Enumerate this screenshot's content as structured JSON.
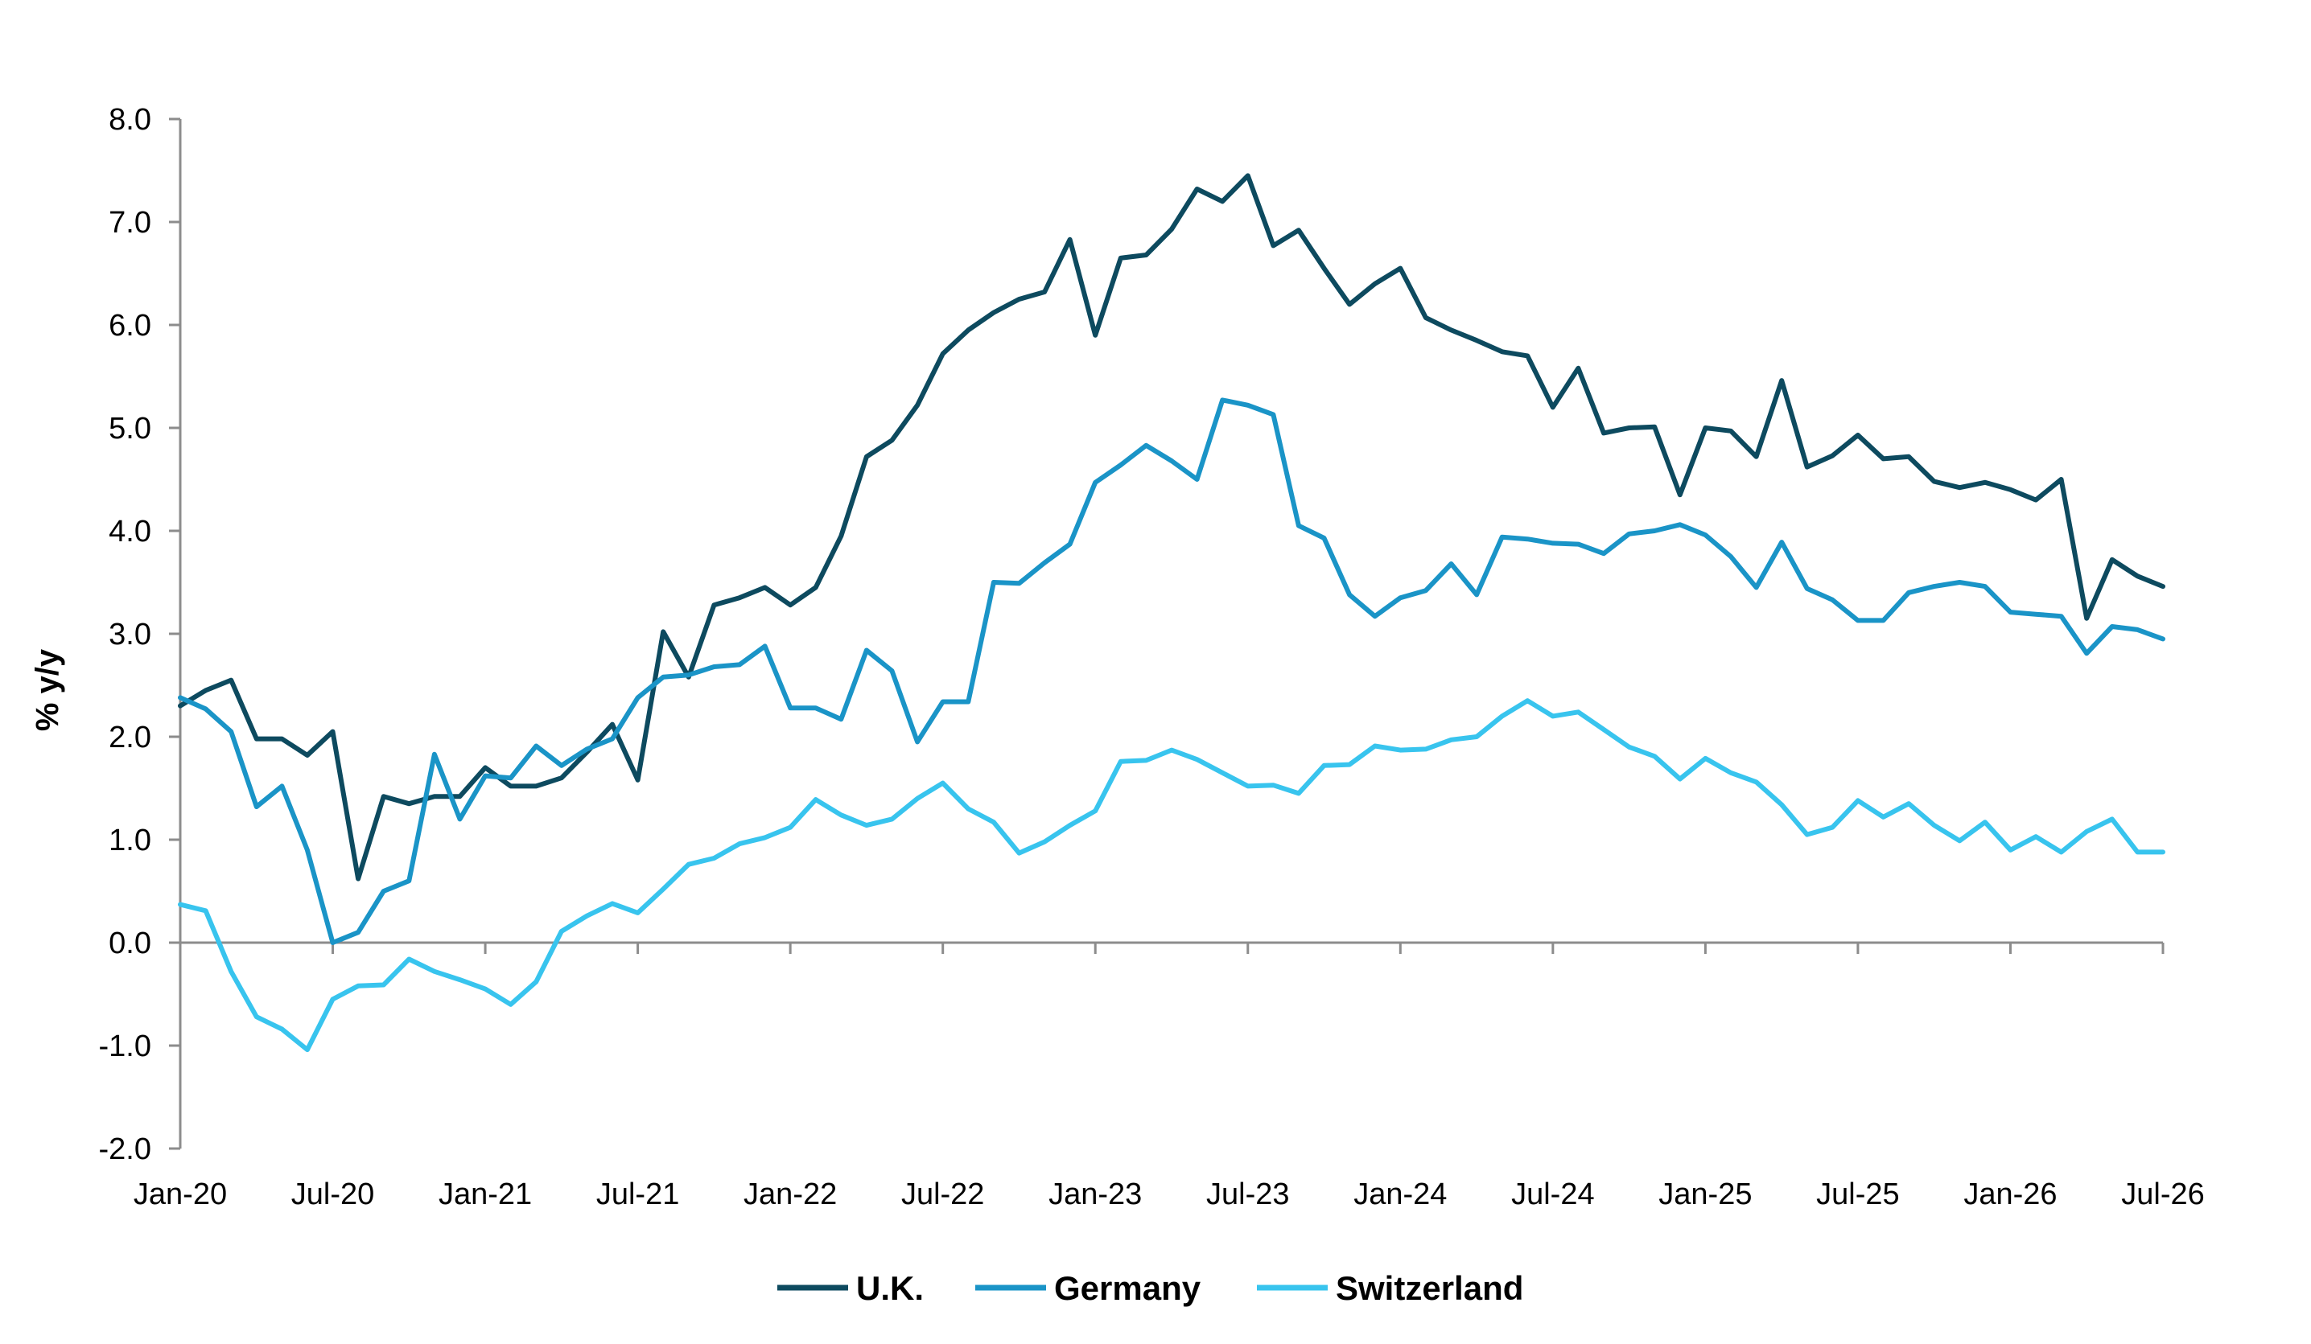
{
  "chart_data": {
    "type": "line",
    "title": "",
    "xlabel": "",
    "ylabel": "% y/y",
    "ylim": [
      -2.0,
      8.0
    ],
    "yticks": [
      "-2.0",
      "-1.0",
      "0.0",
      "1.0",
      "2.0",
      "3.0",
      "4.0",
      "5.0",
      "6.0",
      "7.0",
      "8.0"
    ],
    "xticks": [
      "Jan-20",
      "Jul-20",
      "Jan-21",
      "Jul-21",
      "Jan-22",
      "Jul-22",
      "Jan-23",
      "Jul-23",
      "Jan-24",
      "Jul-24",
      "Jan-25",
      "Jul-25",
      "Jan-26",
      "Jul-26"
    ],
    "x_start": "Jan-20",
    "x_end": "Jul-26",
    "frequency": "monthly",
    "grid": false,
    "legend": "bottom-center",
    "series": [
      {
        "name": "U.K.",
        "color": "#0d4a5f",
        "values": [
          2.3,
          2.45,
          2.55,
          1.98,
          1.98,
          1.82,
          2.05,
          0.62,
          1.42,
          1.35,
          1.42,
          1.42,
          1.7,
          1.52,
          1.52,
          1.6,
          1.85,
          2.12,
          1.58,
          3.02,
          2.58,
          3.28,
          3.35,
          3.45,
          3.28,
          3.45,
          3.95,
          4.72,
          4.88,
          5.22,
          5.72,
          5.95,
          6.12,
          6.25,
          6.32,
          6.83,
          5.9,
          6.65,
          6.68,
          6.93,
          7.32,
          7.2,
          7.45,
          6.77,
          6.92,
          6.55,
          6.2,
          6.4,
          6.55,
          6.07,
          5.95,
          5.85,
          5.74,
          5.7,
          5.2,
          5.58,
          4.95,
          5.0,
          5.01,
          4.35,
          5.0,
          4.97,
          4.72,
          5.46,
          4.62,
          4.73,
          4.93,
          4.7,
          4.72,
          4.48,
          4.42,
          4.47,
          4.4,
          4.3,
          4.5,
          3.15,
          3.72,
          3.56,
          3.46
        ]
      },
      {
        "name": "Germany",
        "color": "#1a94c7",
        "values": [
          2.38,
          2.27,
          2.05,
          1.32,
          1.52,
          0.9,
          0.0,
          0.1,
          0.5,
          0.6,
          1.83,
          1.2,
          1.62,
          1.6,
          1.91,
          1.72,
          1.88,
          1.98,
          2.38,
          2.58,
          2.6,
          2.68,
          2.7,
          2.88,
          2.28,
          2.28,
          2.17,
          2.84,
          2.64,
          1.95,
          2.34,
          2.34,
          3.5,
          3.49,
          3.69,
          3.87,
          4.47,
          4.64,
          4.83,
          4.68,
          4.5,
          5.27,
          5.22,
          5.13,
          4.05,
          3.93,
          3.38,
          3.17,
          3.35,
          3.42,
          3.68,
          3.38,
          3.94,
          3.92,
          3.88,
          3.87,
          3.78,
          3.97,
          4.0,
          4.06,
          3.96,
          3.75,
          3.45,
          3.89,
          3.44,
          3.33,
          3.13,
          3.13,
          3.4,
          3.46,
          3.5,
          3.46,
          3.21,
          3.19,
          3.17,
          2.81,
          3.07,
          3.04,
          2.95
        ]
      },
      {
        "name": "Switzerland",
        "color": "#38c4ee",
        "values": [
          0.37,
          0.31,
          -0.28,
          -0.72,
          -0.84,
          -1.04,
          -0.55,
          -0.42,
          -0.41,
          -0.16,
          -0.28,
          -0.36,
          -0.45,
          -0.6,
          -0.38,
          0.11,
          0.26,
          0.38,
          0.29,
          0.52,
          0.76,
          0.82,
          0.96,
          1.02,
          1.12,
          1.39,
          1.24,
          1.14,
          1.2,
          1.4,
          1.55,
          1.3,
          1.17,
          0.87,
          0.98,
          1.14,
          1.28,
          1.76,
          1.77,
          1.87,
          1.78,
          1.65,
          1.52,
          1.53,
          1.45,
          1.72,
          1.73,
          1.91,
          1.87,
          1.88,
          1.97,
          2.0,
          2.2,
          2.35,
          2.2,
          2.24,
          2.07,
          1.9,
          1.81,
          1.59,
          1.79,
          1.65,
          1.56,
          1.34,
          1.05,
          1.12,
          1.38,
          1.22,
          1.35,
          1.14,
          0.99,
          1.17,
          0.9,
          1.03,
          0.88,
          1.08,
          1.2,
          0.88,
          0.88
        ]
      }
    ]
  }
}
